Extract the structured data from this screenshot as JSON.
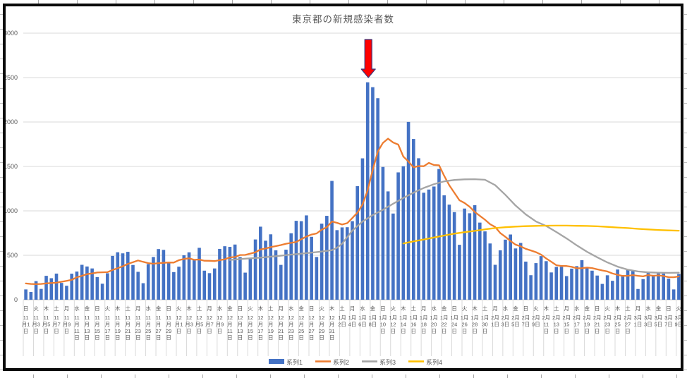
{
  "chart_data": {
    "type": "bar",
    "title": "東京都の新規感染者数",
    "xlabel": "",
    "ylabel": "",
    "ylim": [
      0,
      3000
    ],
    "y_ticks": [
      0,
      500,
      1000,
      1500,
      2000,
      2500,
      3000
    ],
    "grid": "horizontal",
    "legend_position": "bottom",
    "x_tick_interval_days": 2,
    "x_labels": [
      {
        "w": "日",
        "m": 11,
        "d": 1
      },
      {
        "w": "火",
        "m": 11,
        "d": 3
      },
      {
        "w": "木",
        "m": 11,
        "d": 5
      },
      {
        "w": "土",
        "m": 11,
        "d": 7
      },
      {
        "w": "月",
        "m": 11,
        "d": 9
      },
      {
        "w": "水",
        "m": 11,
        "d": 11
      },
      {
        "w": "金",
        "m": 11,
        "d": 13
      },
      {
        "w": "日",
        "m": 11,
        "d": 15
      },
      {
        "w": "火",
        "m": 11,
        "d": 17
      },
      {
        "w": "木",
        "m": 11,
        "d": 19
      },
      {
        "w": "土",
        "m": 11,
        "d": 21
      },
      {
        "w": "月",
        "m": 11,
        "d": 23
      },
      {
        "w": "水",
        "m": 11,
        "d": 25
      },
      {
        "w": "金",
        "m": 11,
        "d": 27
      },
      {
        "w": "日",
        "m": 11,
        "d": 29
      },
      {
        "w": "火",
        "m": 12,
        "d": 1
      },
      {
        "w": "木",
        "m": 12,
        "d": 3
      },
      {
        "w": "土",
        "m": 12,
        "d": 5
      },
      {
        "w": "月",
        "m": 12,
        "d": 7
      },
      {
        "w": "水",
        "m": 12,
        "d": 9
      },
      {
        "w": "金",
        "m": 12,
        "d": 11
      },
      {
        "w": "日",
        "m": 12,
        "d": 13
      },
      {
        "w": "火",
        "m": 12,
        "d": 15
      },
      {
        "w": "木",
        "m": 12,
        "d": 17
      },
      {
        "w": "土",
        "m": 12,
        "d": 19
      },
      {
        "w": "月",
        "m": 12,
        "d": 21
      },
      {
        "w": "水",
        "m": 12,
        "d": 23
      },
      {
        "w": "金",
        "m": 12,
        "d": 25
      },
      {
        "w": "日",
        "m": 12,
        "d": 27
      },
      {
        "w": "火",
        "m": 12,
        "d": 29
      },
      {
        "w": "木",
        "m": 12,
        "d": 31
      },
      {
        "w": "土",
        "m": 1,
        "d": 2
      },
      {
        "w": "月",
        "m": 1,
        "d": 4
      },
      {
        "w": "水",
        "m": 1,
        "d": 6
      },
      {
        "w": "金",
        "m": 1,
        "d": 8
      },
      {
        "w": "日",
        "m": 1,
        "d": 10
      },
      {
        "w": "火",
        "m": 1,
        "d": 12
      },
      {
        "w": "木",
        "m": 1,
        "d": 14
      },
      {
        "w": "土",
        "m": 1,
        "d": 16
      },
      {
        "w": "月",
        "m": 1,
        "d": 18
      },
      {
        "w": "水",
        "m": 1,
        "d": 20
      },
      {
        "w": "金",
        "m": 1,
        "d": 22
      },
      {
        "w": "日",
        "m": 1,
        "d": 24
      },
      {
        "w": "火",
        "m": 1,
        "d": 26
      },
      {
        "w": "木",
        "m": 1,
        "d": 28
      },
      {
        "w": "土",
        "m": 1,
        "d": 30
      },
      {
        "w": "月",
        "m": 2,
        "d": 1
      },
      {
        "w": "水",
        "m": 2,
        "d": 3
      },
      {
        "w": "金",
        "m": 2,
        "d": 5
      },
      {
        "w": "日",
        "m": 2,
        "d": 7
      },
      {
        "w": "火",
        "m": 2,
        "d": 9
      },
      {
        "w": "木",
        "m": 2,
        "d": 11
      },
      {
        "w": "土",
        "m": 2,
        "d": 13
      },
      {
        "w": "月",
        "m": 2,
        "d": 15
      },
      {
        "w": "水",
        "m": 2,
        "d": 17
      },
      {
        "w": "金",
        "m": 2,
        "d": 19
      },
      {
        "w": "日",
        "m": 2,
        "d": 21
      },
      {
        "w": "火",
        "m": 2,
        "d": 23
      },
      {
        "w": "木",
        "m": 2,
        "d": 25
      },
      {
        "w": "土",
        "m": 2,
        "d": 27
      },
      {
        "w": "月",
        "m": 3,
        "d": 1
      },
      {
        "w": "水",
        "m": 3,
        "d": 3
      },
      {
        "w": "金",
        "m": 3,
        "d": 5
      },
      {
        "w": "日",
        "m": 3,
        "d": 7
      },
      {
        "w": "火",
        "m": 3,
        "d": 9
      }
    ],
    "series": [
      {
        "name": "系列1",
        "type": "bar",
        "color": "#4472C4",
        "values": [
          116,
          87,
          209,
          122,
          269,
          242,
          294,
          189,
          157,
          293,
          317,
          393,
          374,
          352,
          255,
          180,
          298,
          493,
          534,
          522,
          539,
          391,
          314,
          186,
          401,
          481,
          570,
          561,
          418,
          311,
          372,
          500,
          533,
          449,
          584,
          327,
          299,
          352,
          572,
          602,
          595,
          621,
          480,
          305,
          460,
          678,
          822,
          664,
          736,
          556,
          392,
          563,
          748,
          888,
          884,
          949,
          708,
          481,
          856,
          944,
          1337,
          783,
          814,
          816,
          884,
          1278,
          1591,
          2447,
          2392,
          2268,
          1494,
          1219,
          970,
          1433,
          1502,
          2001,
          1809,
          1592,
          1204,
          1240,
          1274,
          1471,
          1175,
          1070,
          986,
          618,
          1026,
          973,
          1064,
          868,
          769,
          633,
          393,
          556,
          676,
          734,
          577,
          639,
          429,
          276,
          412,
          491,
          434,
          307,
          369,
          371,
          266,
          350,
          378,
          445,
          353,
          327,
          272,
          178,
          275,
          213,
          340,
          270,
          337,
          329,
          121,
          232,
          316,
          279,
          301,
          293,
          237,
          116,
          290
        ]
      },
      {
        "name": "系列2",
        "type": "line",
        "color": "#ED7D31",
        "values": [
          183,
          178,
          175,
          178,
          184,
          188,
          191,
          202,
          212,
          224,
          252,
          269,
          288,
          296,
          306,
          309,
          310,
          335,
          355,
          376,
          403,
          422,
          442,
          426,
          412,
          405,
          412,
          415,
          419,
          418,
          445,
          459,
          466,
          449,
          452,
          439,
          438,
          435,
          445,
          455,
          476,
          481,
          503,
          504,
          519,
          534,
          566,
          576,
          592,
          603,
          615,
          630,
          640,
          650,
          681,
          711,
          733,
          746,
          788,
          816,
          880,
          865,
          846,
          862,
          919,
          979,
          1072,
          1230,
          1460,
          1668,
          1765,
          1813,
          1769,
          1746,
          1611,
          1555,
          1490,
          1504,
          1502,
          1540,
          1517,
          1513,
          1395,
          1289,
          1203,
          1119,
          1089,
          1046,
          987,
          944,
          901,
          850,
          818,
          751,
          708,
          661,
          620,
          601,
          572,
          555,
          535,
          508,
          465,
          427,
          388,
          380,
          379,
          370,
          354,
          355,
          362,
          356,
          342,
          329,
          318,
          295,
          280,
          268,
          269,
          277,
          269,
          263,
          278,
          269,
          274,
          267,
          254,
          253,
          262
        ]
      },
      {
        "name": "系列3",
        "type": "line",
        "color": "#A5A5A5",
        "points": [
          [
            40,
            448
          ],
          [
            43,
            462
          ],
          [
            46,
            474
          ],
          [
            49,
            490
          ],
          [
            52,
            508
          ],
          [
            55,
            524
          ],
          [
            58,
            542
          ],
          [
            60,
            558
          ],
          [
            61,
            585
          ],
          [
            62,
            630
          ],
          [
            63,
            705
          ],
          [
            64,
            778
          ],
          [
            66,
            880
          ],
          [
            68,
            952
          ],
          [
            70,
            1012
          ],
          [
            72,
            1080
          ],
          [
            74,
            1145
          ],
          [
            76,
            1205
          ],
          [
            78,
            1258
          ],
          [
            80,
            1300
          ],
          [
            82,
            1332
          ],
          [
            84,
            1348
          ],
          [
            86,
            1355
          ],
          [
            88,
            1356
          ],
          [
            90,
            1350
          ],
          [
            92,
            1290
          ],
          [
            94,
            1180
          ],
          [
            96,
            1060
          ],
          [
            98,
            960
          ],
          [
            100,
            880
          ],
          [
            102,
            830
          ],
          [
            104,
            762
          ],
          [
            106,
            690
          ],
          [
            108,
            612
          ],
          [
            110,
            540
          ],
          [
            112,
            478
          ],
          [
            114,
            420
          ],
          [
            116,
            372
          ],
          [
            118,
            338
          ],
          [
            120,
            318
          ],
          [
            122,
            308
          ],
          [
            124,
            304
          ],
          [
            126,
            302
          ],
          [
            128,
            304
          ]
        ]
      },
      {
        "name": "系列4",
        "type": "line",
        "color": "#FFC000",
        "points": [
          [
            74,
            633
          ],
          [
            76,
            656
          ],
          [
            78,
            678
          ],
          [
            80,
            700
          ],
          [
            82,
            722
          ],
          [
            84,
            744
          ],
          [
            86,
            760
          ],
          [
            88,
            775
          ],
          [
            90,
            792
          ],
          [
            92,
            806
          ],
          [
            94,
            816
          ],
          [
            96,
            823
          ],
          [
            98,
            828
          ],
          [
            100,
            831
          ],
          [
            102,
            833
          ],
          [
            104,
            834
          ],
          [
            106,
            834
          ],
          [
            108,
            832
          ],
          [
            110,
            830
          ],
          [
            112,
            826
          ],
          [
            114,
            820
          ],
          [
            116,
            813
          ],
          [
            118,
            806
          ],
          [
            120,
            798
          ],
          [
            122,
            791
          ],
          [
            124,
            785
          ],
          [
            126,
            780
          ],
          [
            128,
            777
          ]
        ]
      }
    ],
    "legend": [
      "系列1",
      "系列2",
      "系列3",
      "系列4"
    ],
    "annotation": {
      "type": "down-arrow",
      "target_label": "1月7日",
      "target_day_index": 67,
      "target_value": 2447,
      "fill": "#FF0000",
      "outline": "#39387E"
    },
    "colors": {
      "grid": "#D9D9D9",
      "axis": "#BFBFBF",
      "text": "#595959",
      "frame": "#0A0A0A"
    }
  }
}
